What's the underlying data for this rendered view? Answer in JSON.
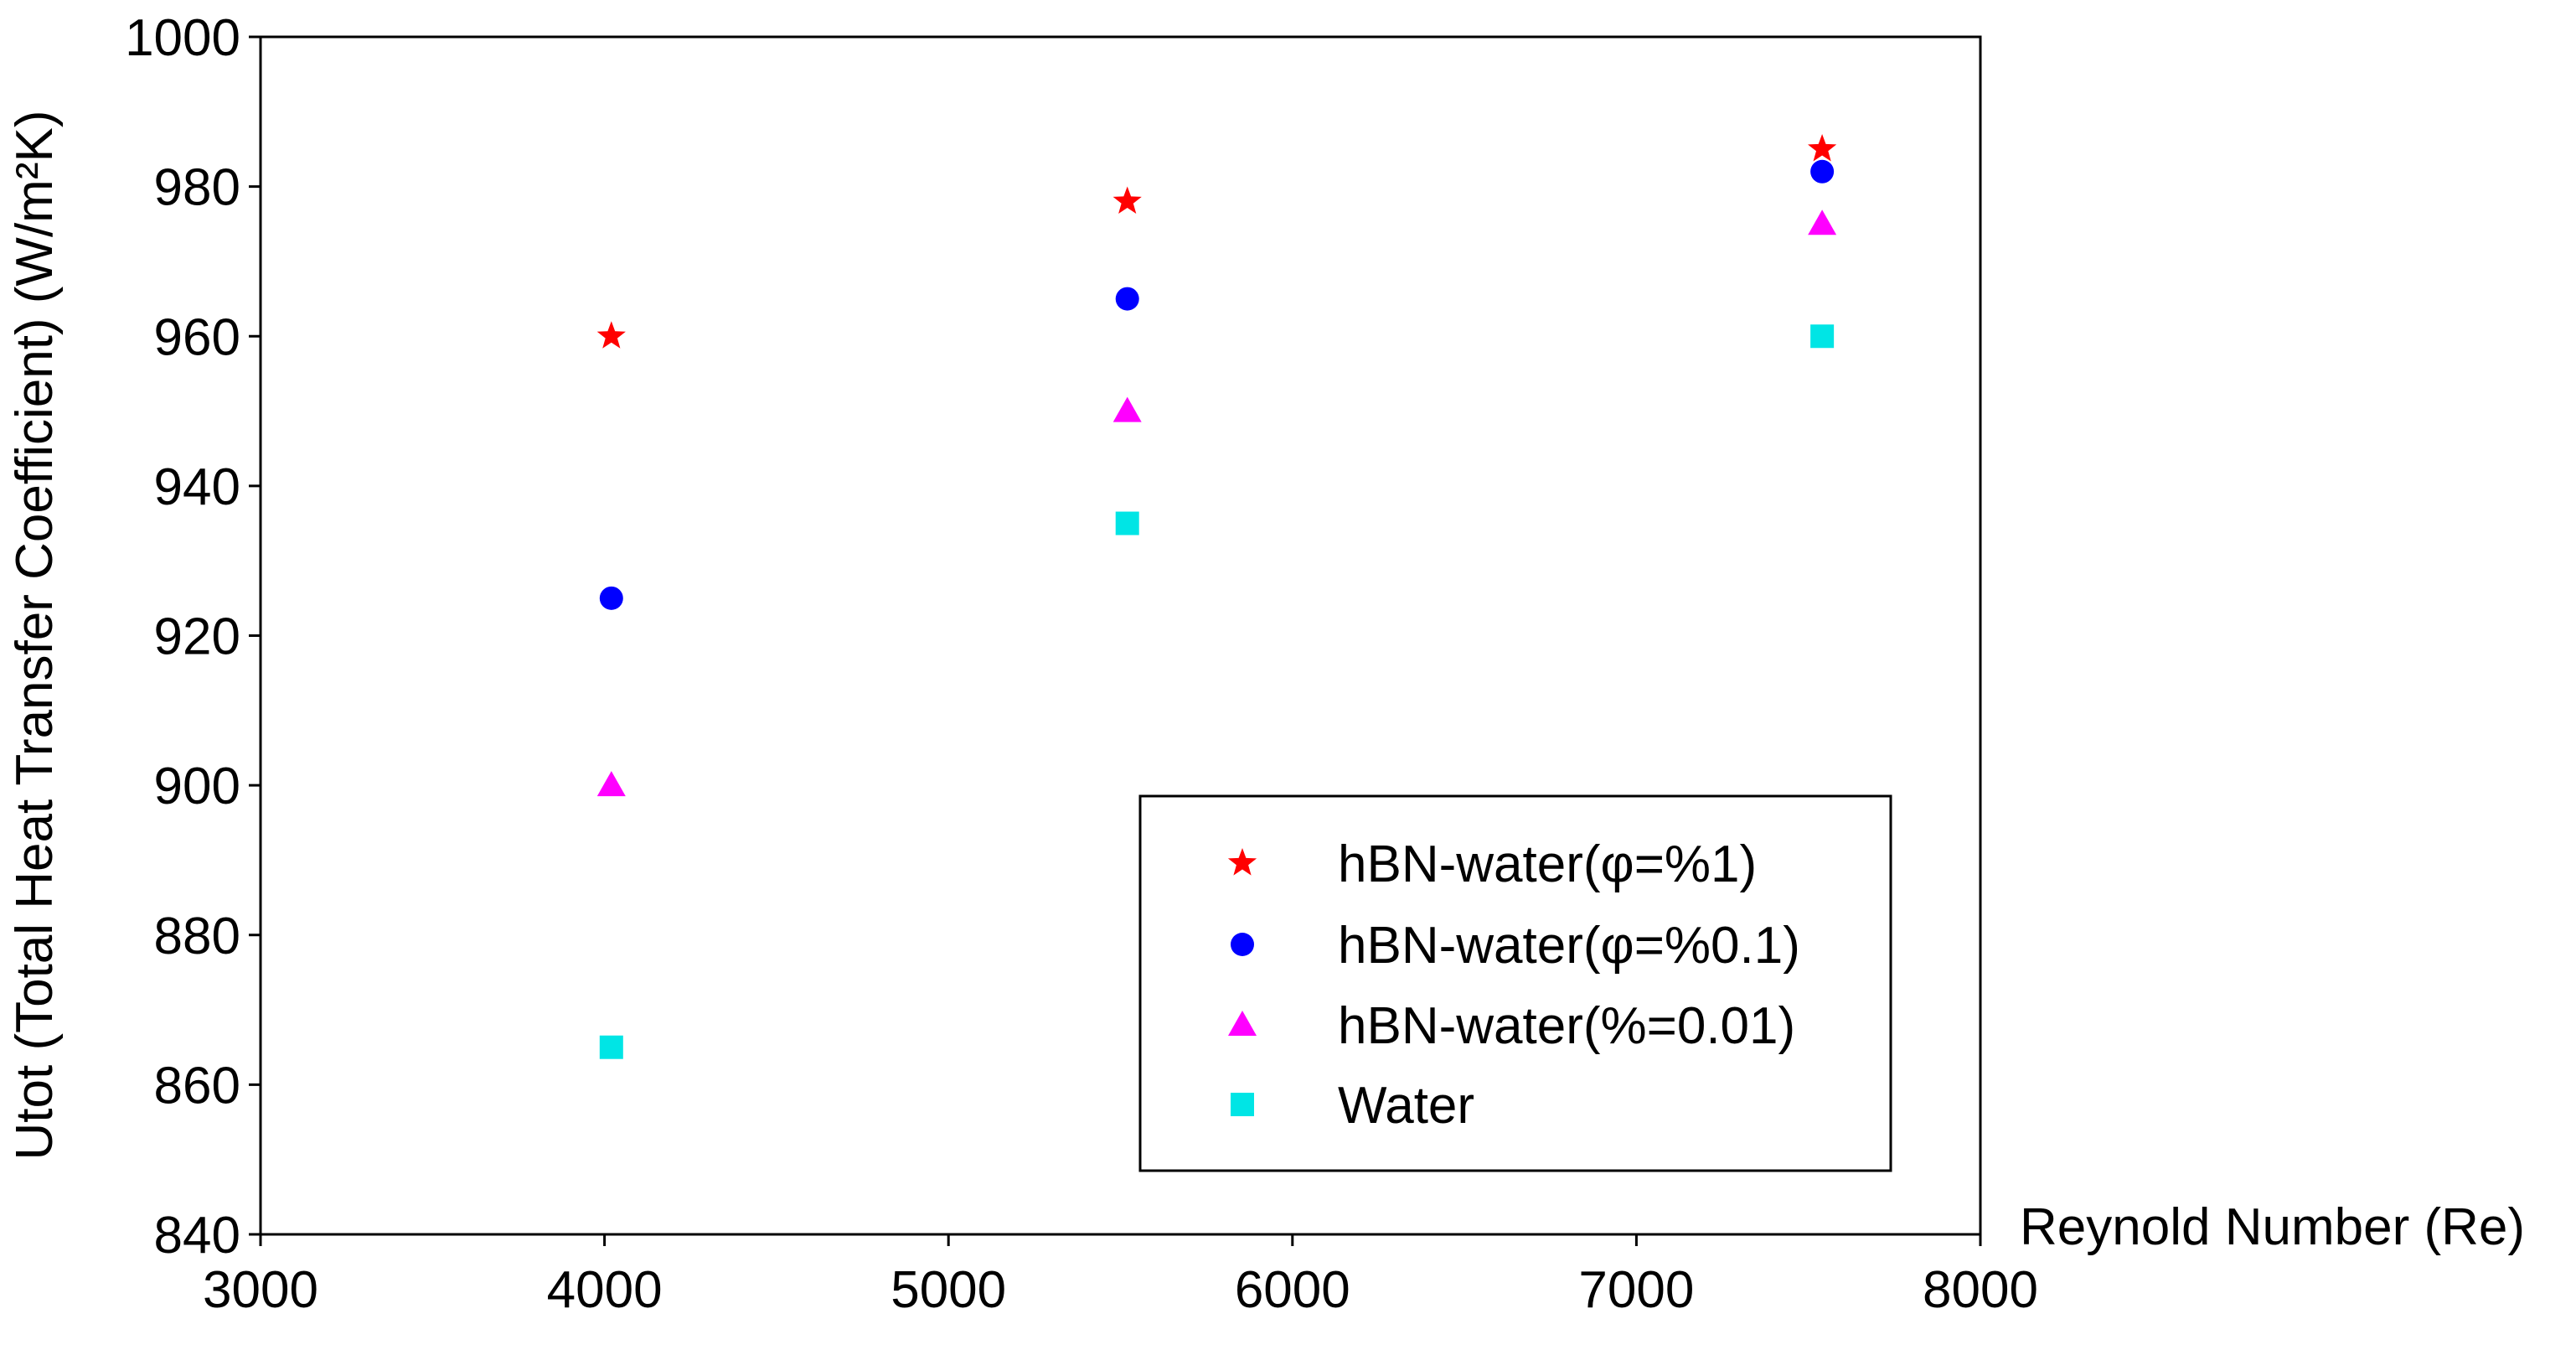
{
  "chart_data": {
    "type": "scatter",
    "title": "",
    "xlabel": "Reynold Number (Re)",
    "ylabel": "Utot (Total Heat Transfer Coefficient) (W/m²K)",
    "xlim": [
      3000,
      8000
    ],
    "ylim": [
      840,
      1000
    ],
    "xticks": [
      3000,
      4000,
      5000,
      6000,
      7000,
      8000
    ],
    "yticks": [
      840,
      860,
      880,
      900,
      920,
      940,
      960,
      980,
      1000
    ],
    "grid": false,
    "legend_position": "bottom-right",
    "series": [
      {
        "name": "hBN-water(φ=%1)",
        "marker": "star",
        "color": "#ff0000",
        "x": [
          4020,
          5520,
          7540
        ],
        "y": [
          960,
          978,
          985
        ]
      },
      {
        "name": "hBN-water(φ=%0.1)",
        "marker": "circle",
        "color": "#0000ff",
        "x": [
          4020,
          5520,
          7540
        ],
        "y": [
          925,
          965,
          982
        ]
      },
      {
        "name": "hBN-water(%=0.01)",
        "marker": "triangle",
        "color": "#ff00ff",
        "x": [
          4020,
          5520,
          7540
        ],
        "y": [
          900,
          950,
          975
        ]
      },
      {
        "name": "Water",
        "marker": "square",
        "color": "#00e5e5",
        "x": [
          4020,
          5520,
          7540
        ],
        "y": [
          865,
          935,
          960
        ]
      }
    ]
  }
}
